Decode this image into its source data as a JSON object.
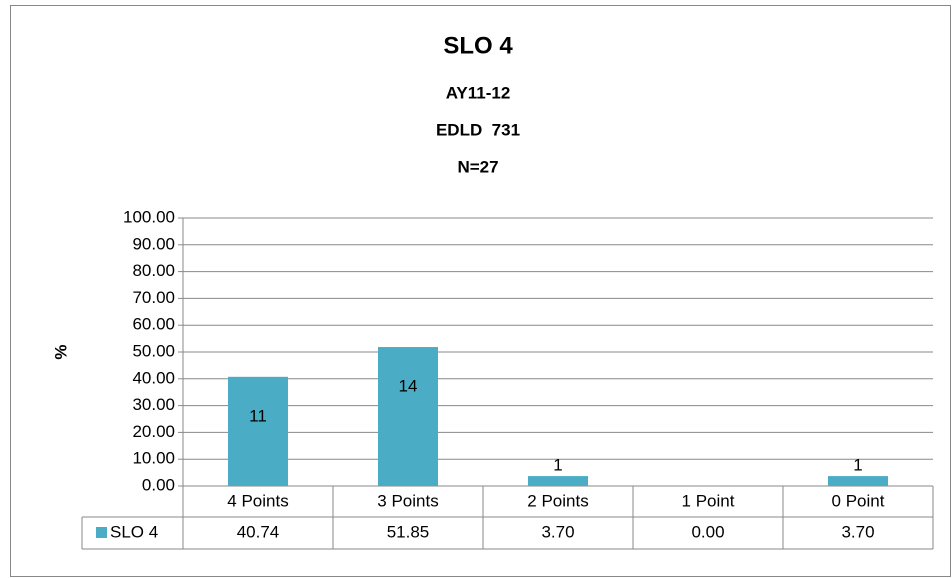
{
  "chart_data": {
    "type": "bar",
    "title": "SLO 4",
    "subtitle": [
      "AY11-12",
      "EDLD  731",
      "N=27"
    ],
    "ylabel": "%",
    "categories": [
      "4 Points",
      "3 Points",
      "2 Points",
      "1 Point",
      "0 Point"
    ],
    "series": [
      {
        "name": "SLO 4",
        "color": "#4bacc6",
        "values": [
          40.74,
          51.85,
          3.7,
          0,
          3.7
        ],
        "value_labels": [
          "40.74",
          "51.85",
          "3.70",
          "0.00",
          "3.70"
        ],
        "counts": [
          11,
          14,
          1,
          null,
          1
        ]
      }
    ],
    "ylim": [
      0,
      100
    ],
    "yticks": [
      {
        "value": 0,
        "label": "0.00"
      },
      {
        "value": 10,
        "label": "10.00"
      },
      {
        "value": 20,
        "label": "20.00"
      },
      {
        "value": 30,
        "label": "30.00"
      },
      {
        "value": 40,
        "label": "40.00"
      },
      {
        "value": 50,
        "label": "50.00"
      },
      {
        "value": 60,
        "label": "60.00"
      },
      {
        "value": 70,
        "label": "70.00"
      },
      {
        "value": 80,
        "label": "80.00"
      },
      {
        "value": 90,
        "label": "90.00"
      },
      {
        "value": 100,
        "label": "100.00"
      }
    ],
    "grid": true,
    "data_table": true
  }
}
